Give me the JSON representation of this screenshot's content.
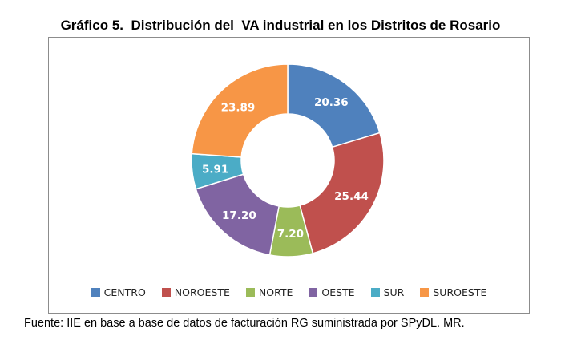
{
  "title": "Gráfico 5.  Distribución del  VA industrial en los Distritos de Rosario",
  "source": "Fuente: IIE en base a base de datos de facturación RG suministrada por SPyDL. MR.",
  "chart_data": {
    "type": "pie",
    "subtype": "donut",
    "categories": [
      "CENTRO",
      "NOROESTE",
      "NORTE",
      "OESTE",
      "SUR",
      "SUROESTE"
    ],
    "values": [
      20.36,
      25.44,
      7.2,
      17.2,
      5.91,
      23.89
    ],
    "labels": [
      "20.36",
      "25.44",
      "7.20",
      "17.20",
      "5.91",
      "23.89"
    ],
    "colors": [
      "#4f81bd",
      "#c0504d",
      "#9bbb59",
      "#8064a2",
      "#4bacc6",
      "#f79646"
    ],
    "legend_position": "bottom"
  }
}
